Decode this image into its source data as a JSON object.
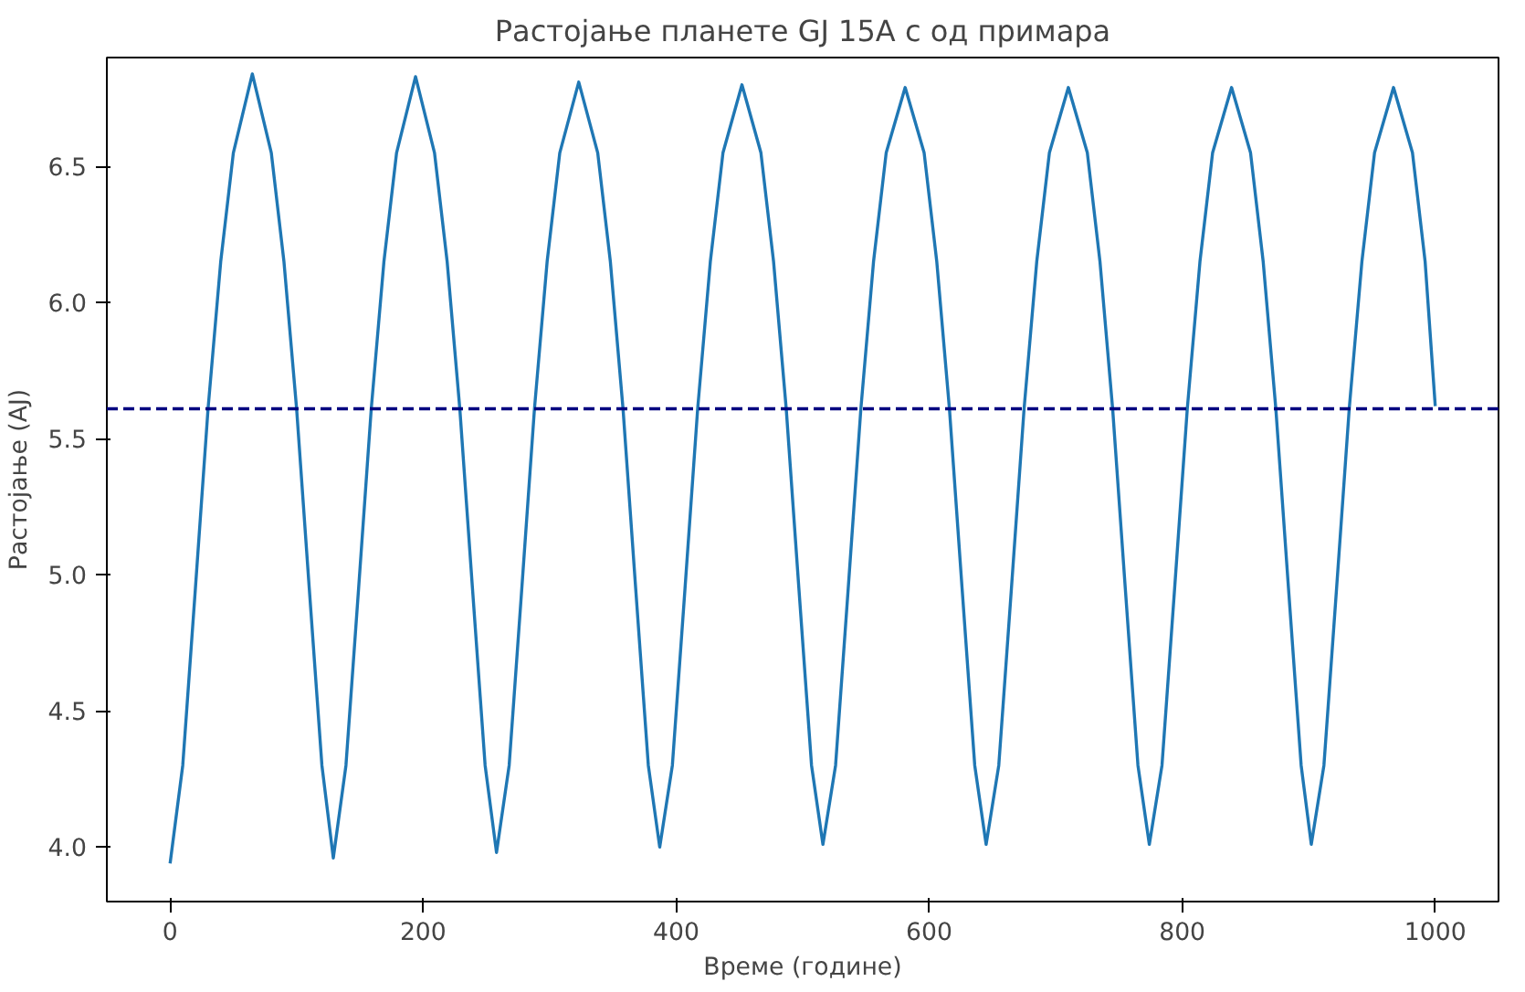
{
  "chart_data": {
    "type": "line",
    "title": "Растојање планете GJ 15A c од примара",
    "xlabel": "Време (године)",
    "ylabel": "Растојање (AJ)",
    "x": [
      0,
      10,
      20,
      30,
      40,
      50,
      65,
      80,
      90,
      100,
      110,
      120,
      129,
      139,
      149,
      159,
      169,
      179,
      194,
      209,
      219,
      229,
      239,
      249,
      258,
      268,
      278,
      288,
      298,
      308,
      323,
      338,
      348,
      358,
      368,
      378,
      387,
      397,
      407,
      417,
      427,
      437,
      452,
      467,
      477,
      487,
      497,
      507,
      516,
      526,
      536,
      546,
      556,
      566,
      581,
      596,
      606,
      616,
      626,
      636,
      645,
      655,
      665,
      675,
      685,
      695,
      710,
      725,
      735,
      745,
      755,
      765,
      774,
      784,
      794,
      804,
      814,
      824,
      839,
      854,
      864,
      874,
      884,
      894,
      902,
      912,
      922,
      932,
      942,
      952,
      967,
      982,
      992,
      1000
    ],
    "series": [
      {
        "color": "#1f77b4",
        "values": [
          3.94,
          4.3,
          4.95,
          5.61,
          6.15,
          6.55,
          6.84,
          6.55,
          6.15,
          5.61,
          4.95,
          4.3,
          3.96,
          4.3,
          4.95,
          5.61,
          6.15,
          6.55,
          6.83,
          6.55,
          6.15,
          5.61,
          4.95,
          4.3,
          3.98,
          4.3,
          4.95,
          5.61,
          6.15,
          6.55,
          6.81,
          6.55,
          6.15,
          5.61,
          4.95,
          4.3,
          4.0,
          4.3,
          4.95,
          5.61,
          6.15,
          6.55,
          6.8,
          6.55,
          6.15,
          5.61,
          4.95,
          4.3,
          4.01,
          4.3,
          4.95,
          5.61,
          6.15,
          6.55,
          6.79,
          6.55,
          6.15,
          5.61,
          4.95,
          4.3,
          4.01,
          4.3,
          4.95,
          5.61,
          6.15,
          6.55,
          6.79,
          6.55,
          6.15,
          5.61,
          4.95,
          4.3,
          4.01,
          4.3,
          4.95,
          5.61,
          6.15,
          6.55,
          6.79,
          6.55,
          6.15,
          5.61,
          4.95,
          4.3,
          4.01,
          4.3,
          4.95,
          5.61,
          6.15,
          6.55,
          6.79,
          6.55,
          6.15,
          5.62
        ]
      }
    ],
    "xlim": [
      -50,
      1050
    ],
    "ylim": [
      3.8,
      6.9
    ],
    "xticks": [
      0,
      200,
      400,
      600,
      800,
      1000
    ],
    "yticks": [
      {
        "value": 4,
        "label": "4.0"
      },
      {
        "value": 4.5,
        "label": "4.5"
      },
      {
        "value": 5,
        "label": "5.0"
      },
      {
        "value": 5.5,
        "label": "5.5"
      },
      {
        "value": 6,
        "label": "6.0"
      },
      {
        "value": 6.5,
        "label": "6.5"
      }
    ],
    "ref_lines": [
      {
        "axis": "y",
        "value": 5.61,
        "color": "#000080",
        "line_style": "dashed"
      }
    ],
    "line_style": "solid"
  }
}
